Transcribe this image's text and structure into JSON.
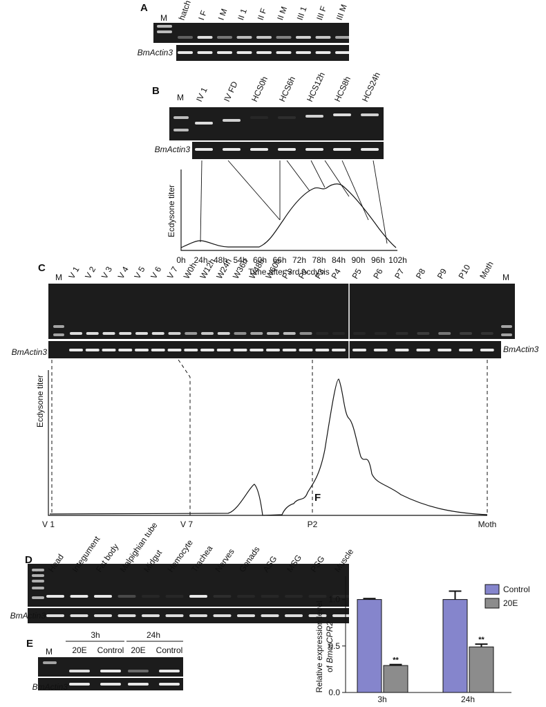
{
  "panels": {
    "A": {
      "label": "A",
      "marker": "M",
      "lanes": [
        "hatch",
        "I F",
        "I M",
        "II 1",
        "II F",
        "II M",
        "III 1",
        "III F",
        "III M"
      ],
      "gene": "BmActin3"
    },
    "B": {
      "label": "B",
      "marker": "M",
      "lanes": [
        "IV 1",
        "IV FD",
        "HCS0h",
        "HCS6h",
        "HCS12h",
        "HCS8h",
        "HCS24h"
      ],
      "gene": "BmActin3",
      "ylabel": "Ecdysone titer",
      "xticks": [
        "0h",
        "24h",
        "48h",
        "54h",
        "60h",
        "66h",
        "72h",
        "78h",
        "84h",
        "90h",
        "96h",
        "102h"
      ],
      "xlabel": "Time after 3rd ecdysis"
    },
    "C": {
      "label": "C",
      "marker": "M",
      "marker_right": "M",
      "lanes": [
        "V 1",
        "V 2",
        "V 3",
        "V 4",
        "V 5",
        "V 6",
        "V 7",
        "W0h",
        "W12h",
        "W24h",
        "W36h",
        "W48h",
        "W60h",
        "P1",
        "P2",
        "P3",
        "P4",
        "P5",
        "P6",
        "P7",
        "P8",
        "P9",
        "P10",
        "Moth"
      ],
      "gene": "BmActin3",
      "gene_right": "BmActin3",
      "ylabel": "Ecdysone titer",
      "xticks": [
        "V 1",
        "V 7",
        "P2",
        "Moth"
      ]
    },
    "D": {
      "label": "D",
      "marker": "M",
      "lanes": [
        "Head",
        "Integument",
        "Fat body",
        "Malpighian tube",
        "Midgut",
        "Hemocyte",
        "Trachea",
        "Nerves",
        "Gonads",
        "ASG",
        "MSG",
        "PSG",
        "Muscle"
      ],
      "gene": "BmActin3"
    },
    "E": {
      "label": "E",
      "marker": "M",
      "groups": [
        "3h",
        "24h"
      ],
      "lanes": [
        "20E",
        "Control",
        "20E",
        "Control"
      ],
      "gene": "BmActin3"
    }
  },
  "chart_data": {
    "type": "bar",
    "label": "F",
    "ylabel": {
      "line1": "Relative expression level",
      "line2_prefix": "of",
      "line2_italic": "BmorCPR2"
    },
    "categories": [
      "3h",
      "24h"
    ],
    "series": [
      {
        "name": "Control",
        "color": "#8585cc",
        "values": [
          1.0,
          1.0
        ],
        "errors": [
          0.01,
          0.09
        ]
      },
      {
        "name": "20E",
        "color": "#8c8c8c",
        "values": [
          0.29,
          0.49
        ],
        "errors": [
          0.01,
          0.03
        ],
        "value_annotations": [
          "**",
          "**"
        ]
      }
    ],
    "ylim": [
      0,
      1.25
    ],
    "yticks": [
      {
        "value": 0,
        "label": "0.0"
      },
      {
        "value": 0.5,
        "label": "0.5"
      },
      {
        "value": 1.0,
        "label": "1.0"
      }
    ],
    "legend": "top-right"
  }
}
